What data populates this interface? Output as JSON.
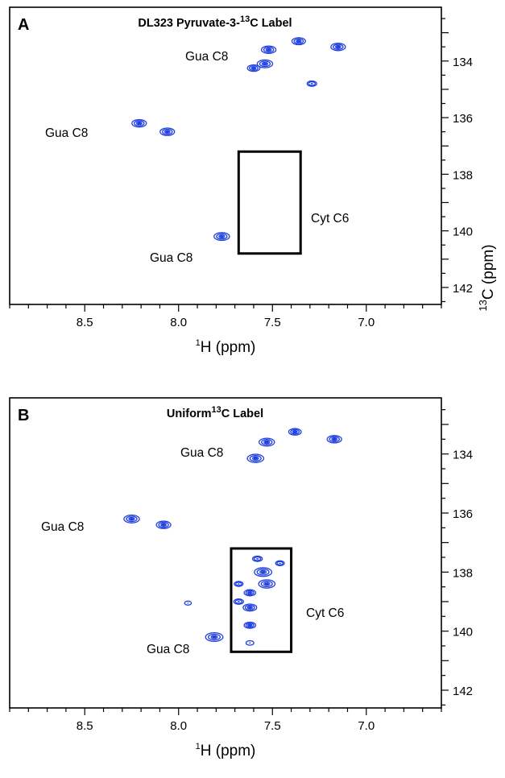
{
  "chart_data": [
    {
      "type": "scatter",
      "panel": "A",
      "title_parts": [
        "DL323 Pyruvate-3-",
        "13",
        "C Label"
      ],
      "xlabel_parts": [
        "1",
        "H (ppm)"
      ],
      "ylabel_parts": [
        "13",
        "C (ppm)"
      ],
      "xlim": [
        8.9,
        6.6
      ],
      "ylim": [
        142.6,
        132.1
      ],
      "x_ticks": [
        "8.5",
        "8.0",
        "7.5",
        "7.0"
      ],
      "y_ticks": [
        "134",
        "136",
        "138",
        "140",
        "142"
      ],
      "annotations": [
        "Gua C8",
        "Gua C8",
        "Gua C8",
        "Cyt C6"
      ],
      "box": {
        "h_range": [
          7.68,
          7.35
        ],
        "c_range": [
          137.2,
          140.8
        ]
      },
      "color": "#1f3fe0",
      "peaks": [
        {
          "h": 7.52,
          "c": 133.6,
          "size": 1.0
        },
        {
          "h": 7.36,
          "c": 133.3,
          "size": 0.9
        },
        {
          "h": 7.15,
          "c": 133.5,
          "size": 1.0
        },
        {
          "h": 7.54,
          "c": 134.1,
          "size": 1.1
        },
        {
          "h": 7.6,
          "c": 134.25,
          "size": 0.8
        },
        {
          "h": 7.29,
          "c": 134.8,
          "size": 0.5
        },
        {
          "h": 8.21,
          "c": 136.2,
          "size": 1.0
        },
        {
          "h": 8.06,
          "c": 136.5,
          "size": 1.0
        },
        {
          "h": 7.77,
          "c": 140.2,
          "size": 1.1
        }
      ]
    },
    {
      "type": "scatter",
      "panel": "B",
      "title_parts": [
        "Uniform",
        "13",
        "C Label"
      ],
      "xlabel_parts": [
        "1",
        "H (ppm)"
      ],
      "ylabel_parts": [
        "13",
        "C (ppm)"
      ],
      "xlim": [
        8.9,
        6.6
      ],
      "ylim": [
        142.6,
        132.1
      ],
      "x_ticks": [
        "8.5",
        "8.0",
        "7.5",
        "7.0"
      ],
      "y_ticks": [
        "134",
        "136",
        "138",
        "140",
        "142"
      ],
      "annotations": [
        "Gua C8",
        "Gua C8",
        "Gua C8",
        "Cyt C6"
      ],
      "box": {
        "h_range": [
          7.72,
          7.4
        ],
        "c_range": [
          137.2,
          140.7
        ]
      },
      "color": "#1f3fe0",
      "peaks": [
        {
          "h": 7.53,
          "c": 133.6,
          "size": 1.1
        },
        {
          "h": 7.38,
          "c": 133.25,
          "size": 0.8
        },
        {
          "h": 7.17,
          "c": 133.5,
          "size": 1.0
        },
        {
          "h": 7.59,
          "c": 134.15,
          "size": 1.2
        },
        {
          "h": 8.25,
          "c": 136.2,
          "size": 1.1
        },
        {
          "h": 8.08,
          "c": 136.4,
          "size": 1.0
        },
        {
          "h": 7.81,
          "c": 140.2,
          "size": 1.3
        },
        {
          "h": 7.58,
          "c": 137.55,
          "size": 0.5
        },
        {
          "h": 7.46,
          "c": 137.7,
          "size": 0.4
        },
        {
          "h": 7.55,
          "c": 138.0,
          "size": 1.3
        },
        {
          "h": 7.53,
          "c": 138.4,
          "size": 1.2
        },
        {
          "h": 7.68,
          "c": 138.4,
          "size": 0.4
        },
        {
          "h": 7.62,
          "c": 138.7,
          "size": 0.7
        },
        {
          "h": 7.68,
          "c": 139.0,
          "size": 0.5
        },
        {
          "h": 7.62,
          "c": 139.2,
          "size": 0.9
        },
        {
          "h": 7.62,
          "c": 139.8,
          "size": 0.7
        },
        {
          "h": 7.62,
          "c": 140.4,
          "size": 0.3
        },
        {
          "h": 7.95,
          "c": 139.05,
          "size": 0.2
        }
      ]
    }
  ]
}
